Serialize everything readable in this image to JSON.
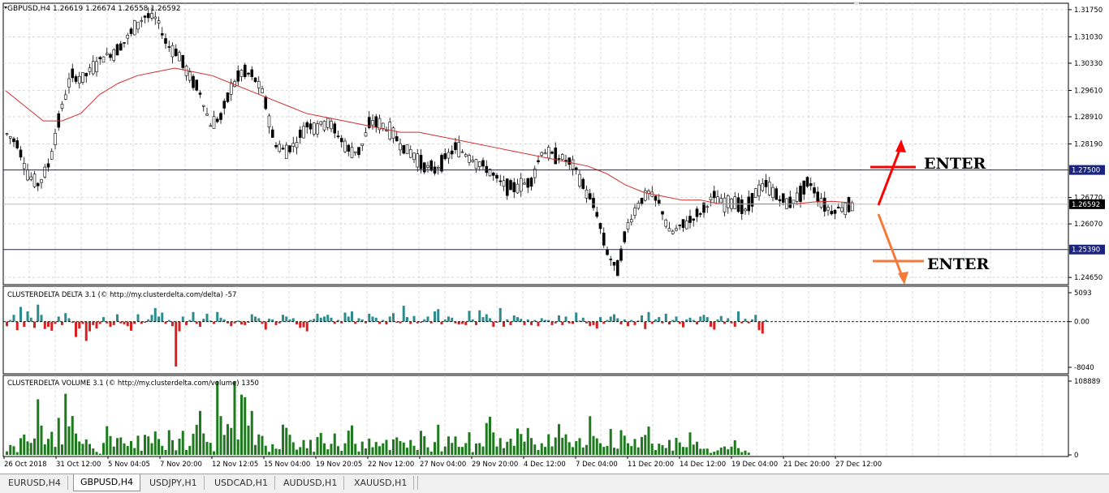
{
  "chart": {
    "symbol_header": "GBPUSD,H4  1.26619 1.26674 1.26558 1.26592",
    "price_axis": {
      "ticks": [
        1.3175,
        1.3103,
        1.3033,
        1.2961,
        1.2891,
        1.2819,
        1.2677,
        1.2607,
        1.2465
      ],
      "ylim": [
        1.2446,
        1.3192
      ]
    },
    "levels": {
      "upper": {
        "value": 1.275,
        "label": "1.27500",
        "color": "#1a237e"
      },
      "lower": {
        "value": 1.2539,
        "label": "1.25390",
        "color": "#1a237e"
      },
      "current": {
        "value": 1.26592,
        "label": "1.26592"
      }
    },
    "annotations": {
      "enter_top": "ENTER",
      "enter_bottom": "ENTER",
      "red": "#ff0000",
      "orange": "#f47a3a"
    },
    "x_axis_labels": [
      "26 Oct 2018",
      "31 Oct 12:00",
      "5 Nov 04:05",
      "7 Nov 20:00",
      "12 Nov 12:05",
      "15 Nov 04:00",
      "19 Nov 20:05",
      "22 Nov 12:00",
      "27 Nov 04:00",
      "29 Nov 20:00",
      "4 Dec 12:00",
      "7 Dec 04:00",
      "11 Dec 20:00",
      "14 Dec 12:00",
      "19 Dec 04:00",
      "21 Dec 20:00",
      "27 Dec 12:00"
    ]
  },
  "chart_data": [
    {
      "type": "line",
      "title": "GBPUSD,H4",
      "series": [
        {
          "name": "price",
          "values": [
            1.2845,
            1.282,
            1.2735,
            1.271,
            1.277,
            1.29,
            1.3,
            1.299,
            1.302,
            1.305,
            1.306,
            1.309,
            1.313,
            1.316,
            1.315,
            1.308,
            1.306,
            1.3,
            1.296,
            1.287,
            1.289,
            1.297,
            1.301,
            1.3,
            1.295,
            1.282,
            1.28,
            1.282,
            1.287,
            1.2865,
            1.288,
            1.284,
            1.28,
            1.28,
            1.288,
            1.287,
            1.285,
            1.281,
            1.279,
            1.276,
            1.275,
            1.278,
            1.281,
            1.279,
            1.277,
            1.275,
            1.272,
            1.27,
            1.271,
            1.272,
            1.28,
            1.279,
            1.278,
            1.276,
            1.27,
            1.265,
            1.254,
            1.248,
            1.26,
            1.266,
            1.269,
            1.266,
            1.258,
            1.26,
            1.262,
            1.264,
            1.268,
            1.266,
            1.267,
            1.264,
            1.269,
            1.271,
            1.268,
            1.266,
            1.268,
            1.272,
            1.267,
            1.264,
            1.265,
            1.2659
          ]
        },
        {
          "name": "moving average",
          "values": [
            1.296,
            1.292,
            1.288,
            1.288,
            1.29,
            1.295,
            1.298,
            1.3,
            1.301,
            1.302,
            1.301,
            1.3,
            1.298,
            1.296,
            1.294,
            1.292,
            1.29,
            1.289,
            1.288,
            1.287,
            1.286,
            1.285,
            1.285,
            1.284,
            1.283,
            1.282,
            1.281,
            1.28,
            1.279,
            1.278,
            1.277,
            1.276,
            1.274,
            1.271,
            1.269,
            1.268,
            1.267,
            1.267,
            1.266,
            1.266,
            1.266,
            1.266,
            1.266,
            1.2665,
            1.2667,
            1.2663
          ]
        }
      ],
      "ylim": [
        1.2446,
        1.3192
      ]
    },
    {
      "type": "bar",
      "title": "CLUSTERDELTA DELTA 3.1 (© http://my.clusterdelta.com/delta) -57",
      "ticks": [
        "5093",
        "0.00",
        "-8040"
      ],
      "ylim": [
        -8040,
        5093
      ],
      "colors": {
        "positive": "#2e8b8b",
        "negative": "#d92020"
      },
      "values": [
        -800,
        300,
        1200,
        -1500,
        2600,
        -900,
        1800,
        700,
        -1100,
        3000,
        1200,
        -1300,
        -900,
        -1600,
        -400,
        900,
        -600,
        1500,
        600,
        -200,
        -2700,
        -1200,
        -400,
        -3400,
        -1700,
        -600,
        -1200,
        -400,
        800,
        -300,
        -900,
        -600,
        1300,
        -300,
        -500,
        -800,
        -1600,
        -400,
        1300,
        -400,
        -200,
        400,
        1200,
        2400,
        900,
        1600,
        -400,
        300,
        -800,
        -7900,
        -1700,
        900,
        -600,
        300,
        1700,
        -400,
        -900,
        500,
        1400,
        200,
        -400,
        1700,
        700,
        400,
        -300,
        -800,
        -300,
        200,
        -500,
        -600,
        -200,
        1300,
        900,
        600,
        -400,
        -1400,
        500,
        400,
        -600,
        -300,
        1200,
        900,
        400,
        600,
        -500,
        -1100,
        -1000,
        -1700,
        300,
        500,
        1400,
        700,
        900,
        1200,
        700,
        -400,
        300,
        -300,
        1600,
        900,
        1800,
        -400,
        600,
        400,
        -300,
        1400,
        900,
        700,
        -400,
        300,
        -500,
        900,
        1500,
        -200,
        -300,
        2800,
        800,
        -400,
        1000,
        -300,
        -200,
        400,
        900,
        -300,
        1800,
        2200,
        -500,
        400,
        900,
        700,
        -300,
        -500,
        -400,
        -600,
        1900,
        400,
        -600,
        2000,
        800,
        1300,
        600,
        -900,
        -200,
        2400,
        -900,
        400,
        -600,
        1100,
        800,
        500,
        -600,
        400,
        -600,
        300,
        -800,
        600,
        300,
        300,
        -600,
        -300,
        1100,
        -600,
        900,
        -300,
        -400,
        1600,
        200,
        700,
        -300,
        -800,
        -600,
        -1200,
        800,
        -400,
        300,
        900,
        1300,
        600,
        -500,
        400,
        -800,
        300,
        -600,
        200,
        1100,
        -1300,
        1700,
        -400,
        400,
        800,
        -300,
        1400,
        -500,
        300,
        900,
        -400,
        -1000,
        400,
        700,
        300,
        -500,
        900,
        1200,
        800,
        -900,
        -1400,
        400,
        1000,
        -400,
        600,
        -300,
        -900,
        1800,
        -300,
        500,
        -300,
        400,
        1200,
        -1500,
        -2100,
        300
      ]
    },
    {
      "type": "bar",
      "title": "CLUSTERDELTA VOLUME 3.1 (© http://my.clusterdelta.com/volume) 1350",
      "ticks": [
        "108889",
        "0"
      ],
      "ylim": [
        0,
        108889
      ],
      "colors": {
        "bar": "#1d7a1d"
      },
      "values": [
        5200,
        14600,
        12800,
        4100,
        24700,
        30100,
        19900,
        17700,
        24200,
        82100,
        43300,
        15500,
        23700,
        34100,
        11800,
        54600,
        15400,
        90200,
        42100,
        57400,
        31500,
        19800,
        16200,
        22900,
        16100,
        9400,
        4400,
        1800,
        17700,
        42300,
        27800,
        12300,
        24800,
        25800,
        17000,
        13100,
        20500,
        10100,
        28300,
        6100,
        29600,
        27300,
        17300,
        34500,
        23400,
        13400,
        7400,
        36500,
        21700,
        6800,
        24000,
        35500,
        7200,
        13300,
        31200,
        44500,
        64900,
        31700,
        19200,
        17800,
        5300,
        108900,
        57300,
        29500,
        45400,
        39800,
        108900,
        22700,
        88900,
        85200,
        43300,
        64900,
        14700,
        30200,
        27900,
        13600,
        4500,
        15700,
        9200,
        8400,
        44600,
        40000,
        29700,
        18600,
        7700,
        11500,
        21900,
        9900,
        22200,
        4600,
        26400,
        32400,
        17100,
        8300,
        16400,
        31600,
        12900,
        5900,
        17100,
        35800,
        43500,
        16400,
        5000,
        19600,
        9600,
        24100,
        11300,
        19000,
        12800,
        17100,
        22200,
        7200,
        22800,
        25900,
        20400,
        18200,
        10600,
        22000,
        13500,
        7300,
        35500,
        27500,
        11200,
        4900,
        18900,
        44600,
        5200,
        12400,
        27300,
        17700,
        27200,
        11900,
        11800,
        17400,
        33400,
        4100,
        16800,
        17400,
        12400,
        47000,
        56300,
        33200,
        12500,
        24800,
        10000,
        19400,
        24000,
        13400,
        38900,
        30800,
        19600,
        39700,
        24900,
        15300,
        7300,
        17200,
        11800,
        30500,
        12600,
        25700,
        45400,
        25300,
        30400,
        18700,
        11500,
        20300,
        24700,
        11000,
        14700,
        57100,
        27900,
        24400,
        17300,
        11900,
        13300,
        38300,
        10600,
        9200,
        36500,
        28400,
        17200,
        13000,
        23500,
        11100,
        26400,
        29500,
        41800,
        16600,
        7200,
        16600,
        14300,
        10100,
        22100,
        6300,
        25100,
        18400,
        11800,
        11400,
        33200,
        15200,
        19400,
        9100,
        9000,
        9300,
        2900,
        4700,
        6700,
        10800,
        12400,
        8300,
        12200,
        21700,
        10000,
        4100,
        6300,
        3300
      ]
    }
  ],
  "tabs": [
    {
      "label": "EURUSD,H4",
      "active": false
    },
    {
      "label": "GBPUSD,H4",
      "active": true
    },
    {
      "label": "USDJPY,H1",
      "active": false
    },
    {
      "label": "USDCAD,H1",
      "active": false
    },
    {
      "label": "AUDUSD,H1",
      "active": false
    },
    {
      "label": "XAUUSD,H1",
      "active": false
    },
    {
      "label": "",
      "active": false
    }
  ]
}
